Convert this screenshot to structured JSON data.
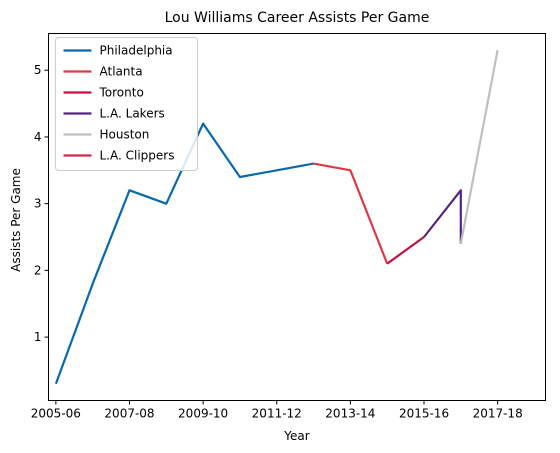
{
  "chart_data": {
    "type": "line",
    "title": "Lou Williams Career Assists Per Game",
    "xlabel": "Year",
    "ylabel": "Assists Per Game",
    "x_tick_labels": [
      "2005-06",
      "2007-08",
      "2009-10",
      "2011-12",
      "2013-14",
      "2015-16",
      "2017-18"
    ],
    "y_ticks": [
      1,
      2,
      3,
      4,
      5
    ],
    "xlim": [
      2004.8,
      2018.3
    ],
    "ylim": [
      0.05,
      5.55
    ],
    "legend_position": "top-left",
    "grid": false,
    "series": [
      {
        "name": "Philadelphia",
        "color": "#0868ac",
        "x": [
          2005,
          2006,
          2007,
          2008,
          2009,
          2010,
          2011,
          2012
        ],
        "y": [
          0.3,
          1.8,
          3.2,
          3.0,
          4.2,
          3.4,
          3.5,
          3.6
        ]
      },
      {
        "name": "Atlanta",
        "color": "#dc3b45",
        "x": [
          2012,
          2013,
          2014
        ],
        "y": [
          3.6,
          3.5,
          2.1
        ]
      },
      {
        "name": "Toronto",
        "color": "#c8103e",
        "x": [
          2014,
          2015
        ],
        "y": [
          2.1,
          2.5
        ]
      },
      {
        "name": "L.A. Lakers",
        "color": "#552583",
        "x": [
          2015,
          2016,
          2016
        ],
        "y": [
          2.5,
          3.2,
          2.4
        ]
      },
      {
        "name": "Houston",
        "color": "#bfbfbf",
        "x": [
          2016,
          2017
        ],
        "y": [
          2.4,
          5.3
        ]
      },
      {
        "name": "L.A. Clippers",
        "color": "#d8264a",
        "x": [],
        "y": []
      }
    ]
  }
}
